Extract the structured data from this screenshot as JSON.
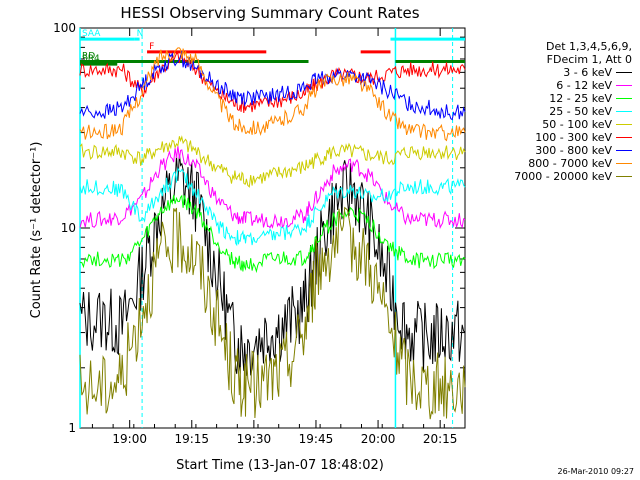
{
  "chart_data": {
    "type": "line",
    "title": "HESSI Observing Summary Count Rates",
    "xlabel": "Start Time (13-Jan-07 18:48:02)",
    "ylabel": "Count Rate (s⁻¹ detector⁻¹)",
    "yscale": "log",
    "ylim": [
      1,
      100
    ],
    "xlim_minutes": [
      18.8,
      20.35
    ],
    "x_tick_labels": [
      "19:00",
      "19:15",
      "19:30",
      "19:45",
      "20:00",
      "20:15"
    ],
    "x_ticks": [
      19.0,
      19.25,
      19.5,
      19.75,
      20.0,
      20.25
    ],
    "y_tick_labels": [
      "1",
      "10",
      "100"
    ],
    "y_ticks": [
      1,
      10,
      100
    ],
    "legend_header": [
      "Det 1,3,4,5,6,9,",
      "FDecim 1, Att 0"
    ],
    "x": [
      18.8,
      18.9,
      18.97,
      19.05,
      19.12,
      19.2,
      19.27,
      19.35,
      19.42,
      19.47,
      19.55,
      19.62,
      19.7,
      19.75,
      19.82,
      19.9,
      19.97,
      20.05,
      20.12,
      20.2,
      20.27,
      20.35
    ],
    "series": [
      {
        "name": "3 - 6 keV",
        "color": "#000000",
        "values": [
          3.5,
          3.5,
          3.2,
          6.0,
          12.0,
          18.0,
          14.0,
          6.0,
          2.8,
          2.5,
          3.0,
          3.2,
          4.0,
          7.0,
          13.0,
          16.0,
          10.0,
          5.0,
          3.0,
          2.8,
          3.0,
          3.0
        ]
      },
      {
        "name": "6 - 12 keV",
        "color": "#ff00ff",
        "values": [
          11.0,
          11.0,
          11.5,
          14.0,
          20.0,
          24.0,
          20.0,
          14.0,
          11.5,
          11.0,
          11.0,
          11.0,
          11.5,
          14.0,
          19.0,
          21.0,
          18.0,
          13.0,
          11.0,
          11.0,
          11.0,
          11.0
        ]
      },
      {
        "name": "12 - 25 keV",
        "color": "#00ff00",
        "values": [
          7.0,
          7.0,
          6.8,
          8.5,
          12.0,
          14.0,
          12.0,
          8.5,
          6.8,
          6.5,
          6.8,
          7.0,
          7.0,
          8.5,
          11.0,
          12.0,
          10.5,
          8.0,
          7.0,
          6.8,
          7.0,
          7.0
        ]
      },
      {
        "name": "25 - 50 keV",
        "color": "#00ffff",
        "values": [
          16.0,
          16.0,
          15.5,
          11.0,
          15.0,
          19.0,
          15.0,
          10.5,
          9.0,
          8.8,
          9.0,
          9.5,
          10.0,
          12.0,
          15.0,
          15.5,
          14.0,
          15.0,
          16.0,
          16.0,
          16.0,
          16.0
        ]
      },
      {
        "name": "50 - 100 keV",
        "color": "#cccc00",
        "values": [
          24.0,
          24.0,
          24.0,
          22.0,
          25.0,
          27.0,
          24.0,
          20.0,
          18.0,
          17.5,
          18.0,
          19.0,
          20.0,
          22.0,
          24.0,
          24.0,
          23.0,
          22.0,
          24.0,
          24.0,
          24.0,
          24.0
        ]
      },
      {
        "name": "100 - 300 keV",
        "color": "#ff0000",
        "values": [
          62.0,
          62.0,
          62.0,
          48.0,
          62.0,
          72.0,
          62.0,
          48.0,
          42.0,
          41.0,
          42.0,
          44.0,
          47.0,
          52.0,
          58.0,
          58.0,
          56.0,
          60.0,
          62.0,
          62.0,
          62.0,
          62.0
        ]
      },
      {
        "name": "300 - 800 keV",
        "color": "#0000ff",
        "values": [
          38.0,
          38.0,
          40.0,
          52.0,
          64.0,
          72.0,
          62.0,
          52.0,
          46.0,
          45.0,
          45.0,
          47.0,
          50.0,
          55.0,
          58.0,
          58.0,
          54.0,
          48.0,
          42.0,
          40.0,
          38.0,
          38.0
        ]
      },
      {
        "name": "800 - 7000 keV",
        "color": "#ff8800",
        "values": [
          30.0,
          30.0,
          32.0,
          48.0,
          72.0,
          78.0,
          68.0,
          45.0,
          33.0,
          32.0,
          32.0,
          35.0,
          40.0,
          50.0,
          56.0,
          56.0,
          48.0,
          36.0,
          31.0,
          30.0,
          30.0,
          30.0
        ]
      },
      {
        "name": "7000 - 20000 keV",
        "color": "#808000",
        "values": [
          1.6,
          1.6,
          1.8,
          4.0,
          7.0,
          9.0,
          7.0,
          3.5,
          1.8,
          1.6,
          1.7,
          2.0,
          3.0,
          6.0,
          8.5,
          8.5,
          6.5,
          3.0,
          1.8,
          1.6,
          1.6,
          1.6
        ]
      }
    ],
    "state_bars": [
      {
        "label": "SAA",
        "color": "#00ffff",
        "y": 88,
        "segments": [
          [
            18.8,
            19.02
          ],
          [
            20.05,
            20.35
          ]
        ]
      },
      {
        "label": "N",
        "color": "#00ffff",
        "y": 88,
        "segments": [
          [
            19.02,
            19.04
          ]
        ]
      },
      {
        "label": "F",
        "color": "#ff0000",
        "y": 76,
        "segments": [
          [
            19.07,
            19.55
          ],
          [
            19.93,
            20.05
          ]
        ]
      },
      {
        "label": "RD",
        "color": "#008000",
        "y": 68,
        "segments": [
          [
            18.8,
            19.72
          ],
          [
            20.07,
            20.35
          ]
        ]
      },
      {
        "label": "SR4",
        "color": "#008000",
        "y": 66,
        "segments": [
          [
            18.8,
            18.95
          ]
        ]
      }
    ],
    "vlines_solid": [
      18.8,
      20.07
    ],
    "vlines_dashed": [
      19.05,
      20.3
    ]
  },
  "footer": {
    "timestamp": "26-Mar-2010 09:27"
  }
}
